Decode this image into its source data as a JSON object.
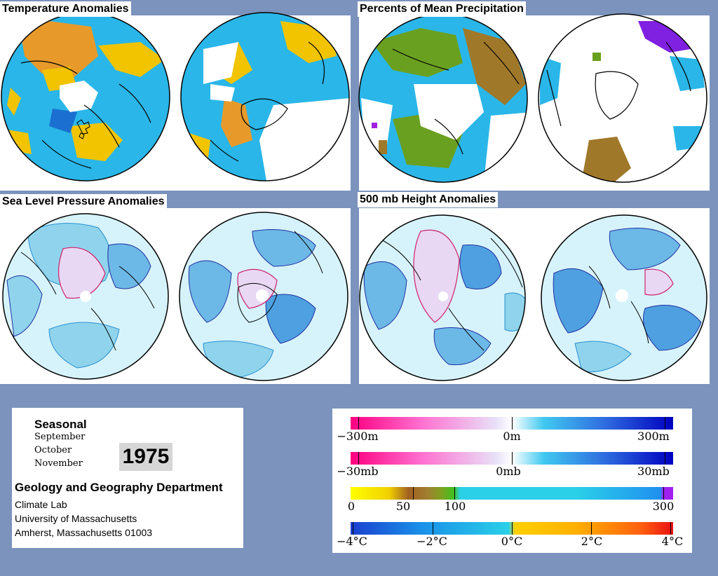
{
  "panels": {
    "temperature": "Temperature Anomalies",
    "precipitation": "Percents of Mean Precipitation",
    "slp": "Sea Level Pressure Anomalies",
    "height": "500 mb Height Anomalies"
  },
  "info": {
    "season": "Seasonal",
    "months": [
      "September",
      "October",
      "November"
    ],
    "year": "1975",
    "department": "Geology and Geography Department",
    "address": [
      "Climate Lab",
      "University of Massachusetts",
      "Amherst, Massachusetts 01003"
    ]
  },
  "legend": {
    "height_scale": [
      "−300m",
      "0m",
      "300m"
    ],
    "pressure_scale": [
      "−30mb",
      "0mb",
      "30mb"
    ],
    "precip_scale": [
      "0",
      "50",
      "100",
      "300"
    ],
    "temp_scale": [
      "−4°C",
      "−2°C",
      "0°C",
      "2°C",
      "4°C"
    ]
  },
  "colors": {
    "background": "#7b93bd",
    "warm": "#f0a020",
    "cold": "#1f8fe0",
    "dry_brown": "#a0782a",
    "wet_green": "#6aa020",
    "positive_contour": "#d0206a",
    "negative_contour": "#2030a0"
  }
}
